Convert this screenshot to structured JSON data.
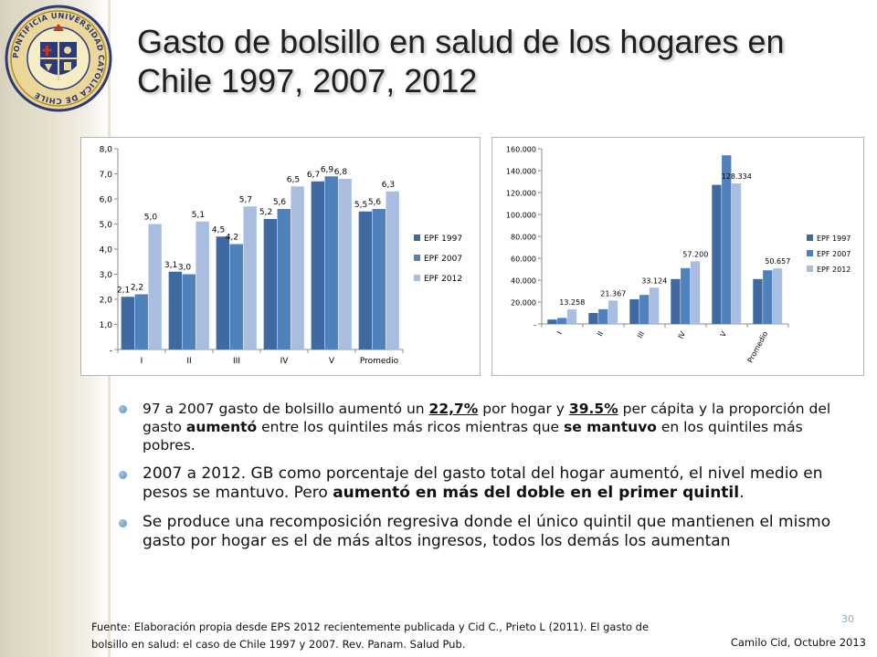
{
  "title": "Gasto de bolsillo en salud de los hogares en Chile 1997, 2007, 2012",
  "logo": {
    "ring_text": "PONTIFICIA UNIVERSIDAD CATOLICA DE CHILE"
  },
  "chart_data": [
    {
      "type": "bar",
      "categories": [
        "I",
        "II",
        "III",
        "IV",
        "V",
        "Promedio"
      ],
      "series": [
        {
          "name": "EPF 1997",
          "values": [
            2.1,
            3.1,
            4.5,
            5.2,
            6.7,
            5.5
          ],
          "labels": [
            "2,1",
            "3,1",
            "4,5",
            "5,2",
            "6,7",
            "5,5"
          ],
          "color": "#3f6aa1"
        },
        {
          "name": "EPF 2007",
          "values": [
            2.2,
            3.0,
            4.2,
            5.6,
            6.9,
            5.6
          ],
          "labels": [
            "2,2",
            "3,0",
            "4,2",
            "5,6",
            "6,9",
            "5,6"
          ],
          "color": "#4f81bd"
        },
        {
          "name": "EPF 2012",
          "values": [
            5.0,
            5.1,
            5.7,
            6.5,
            6.8,
            6.3
          ],
          "labels": [
            "5,0",
            "5,1",
            "5,7",
            "6,5",
            "6,8",
            "6,3"
          ],
          "color": "#a8bde0"
        }
      ],
      "ylim": [
        0,
        8
      ],
      "yticks": [
        0,
        1,
        2,
        3,
        4,
        5,
        6,
        7,
        8
      ],
      "ytick_labels": [
        "-",
        "1,0",
        "2,0",
        "3,0",
        "4,0",
        "5,0",
        "6,0",
        "7,0",
        "8,0"
      ],
      "grid": false,
      "legend": "right"
    },
    {
      "type": "bar",
      "categories": [
        "I",
        "II",
        "III",
        "IV",
        "V",
        "Promedio"
      ],
      "series": [
        {
          "name": "EPF 1997",
          "values": [
            4000,
            10000,
            22500,
            41000,
            127000,
            41000
          ],
          "color": "#3f6aa1"
        },
        {
          "name": "EPF 2007",
          "values": [
            5500,
            13500,
            26500,
            51000,
            154000,
            49000
          ],
          "color": "#4f81bd"
        },
        {
          "name": "EPF 2012",
          "values": [
            13258,
            21367,
            33124,
            57200,
            128334,
            50657
          ],
          "labels": [
            "13.258",
            "21.367",
            "33.124",
            "57.200",
            "128.334",
            "50.657"
          ],
          "color": "#a8bde0"
        }
      ],
      "ylim": [
        0,
        160000
      ],
      "yticks": [
        0,
        20000,
        40000,
        60000,
        80000,
        100000,
        120000,
        140000,
        160000
      ],
      "ytick_labels": [
        "-",
        "20.000",
        "40.000",
        "60.000",
        "80.000",
        "100.000",
        "120.000",
        "140.000",
        "160.000"
      ],
      "grid": false,
      "legend": "right"
    }
  ],
  "bullets": {
    "b1": {
      "t1": "97 a 2007 gasto de bolsillo aumentó un ",
      "u1": "22,7%",
      "t2": " por hogar y ",
      "u2": "39.5%",
      "t3": " per cápita y la proporción del gasto ",
      "s1": "aumentó",
      "t4": " entre los quintiles más ricos mientras que ",
      "s2": "se mantuvo",
      "t5": " en los quintiles más pobres."
    },
    "b2": {
      "t1": "2007 a 2012. GB como porcentaje del gasto total del hogar aumentó, el nivel medio en pesos se mantuvo. Pero ",
      "s1": "aumentó en más del doble en el primer quintil",
      "t2": "."
    },
    "b3": {
      "t1": "Se produce una recomposición regresiva donde el único quintil que mantienen el mismo gasto por hogar es el de más altos ingresos, todos los demás los aumentan"
    }
  },
  "page_number": "30",
  "source": "Fuente: Elaboración propia desde EPS 2012 recientemente publicada y Cid  C., Prieto L (2011). El gasto de bolsillo en salud: el caso de Chile 1997 y 2007. Rev. Panam. Salud Pub.",
  "author": "Camilo Cid, Octubre 2013"
}
